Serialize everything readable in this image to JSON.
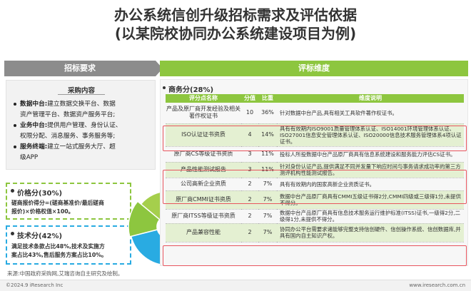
{
  "title": {
    "line1": "办公系统信创升级招标需求及评估依据",
    "line2": "(以某院校协同办公系统建设项目为例)"
  },
  "left": {
    "header": "招标要求",
    "procurement": {
      "title": "采购内容",
      "items": [
        {
          "label": "数据中台:",
          "text": "建立数据交换平台、数据",
          "cont": "资产管理平台、数据资产服务平台;"
        },
        {
          "label": "业务中台:",
          "text": "提供用户管理、身份认证、",
          "cont": "权限分配、消息服务、事务服务等;"
        },
        {
          "label": "服务终端:",
          "text": "建立一站式服务大厅、超",
          "cont": "级APP"
        }
      ]
    },
    "price": {
      "title": "价格分(30%)",
      "desc_line1": "磋商报价得分=(磋商基准价/最后磋商",
      "desc_line2": "报价)×价格权值×100。"
    },
    "tech": {
      "title": "技术分(42%)",
      "desc_line1": "满足技术条款占比48%,技术及实施方",
      "desc_line2": "案占比43%,售后服务方案占比10%。"
    }
  },
  "right": {
    "header": "评标维度",
    "business_title": "商务分(28%)",
    "columns": [
      "评分点名称",
      "分值",
      "比重",
      "维度说明"
    ],
    "rows": [
      {
        "name": "产品及原厂商开发经验及相关著作权证书",
        "score": "10",
        "pct": "36%",
        "desc": "针对数据中台产品,具有相关工具软件著作权证书。"
      },
      {
        "name": "ISO认证证书资质",
        "score": "4",
        "pct": "14%",
        "desc": "具有有效期内ISO9001质量管理体系认证、ISO14001环境管理体系认证、ISO27001信息安全管理体系认证、ISO20000信息技术服务管理体系4项认证证书。"
      },
      {
        "name": "原厂商CS等级证书资质",
        "score": "3",
        "pct": "11%",
        "desc": "投标人所投数据中台产品原厂商具有信息系统建设和服务能力评估CS证书。"
      },
      {
        "name": "产品性能测试报告",
        "score": "3",
        "pct": "11%",
        "desc": "针对身份认证产品,提供满足不同并发量下响应时间与事务请求成功率的第三方测评机构性能测试报告。"
      },
      {
        "name": "公司高新企业资质",
        "score": "2",
        "pct": "7%",
        "desc": "具有有效期内的国家高新企业资质证书。"
      },
      {
        "name": "原厂商CMMI证书资质",
        "score": "2",
        "pct": "7%",
        "desc": "数据中台产品原厂商具有CMMI五级证书得2分,CMMI四级或三级得1分,未提供不得分。"
      },
      {
        "name": "原厂商ITSS等级证书资质",
        "score": "2",
        "pct": "7%",
        "desc": "数据中台产品原厂商具有信息技术服务运行维护标准(ITSS)证书,一级得2分,二级得1分,未提供不得分。"
      },
      {
        "name": "产品兼容性能",
        "score": "2",
        "pct": "7%",
        "desc": "协同办公平台需要求诸能够完整支持信创硬件、信创操作系统、信创数据库,并具有国内自主知识产权。"
      }
    ]
  },
  "pie_data": {
    "slices": [
      {
        "name": "价格分",
        "value": 30,
        "color": "#8dc63f"
      },
      {
        "name": "技术分",
        "value": 42,
        "color": "#29abe2"
      },
      {
        "name": "商务分",
        "value": 28,
        "color": "#a5cf4c"
      }
    ]
  },
  "source": "来源:中国政府采购网,艾瑞咨询自主研究及绘制。",
  "footer": {
    "left": "©2024.9 iResearch Inc",
    "right": "www.iresearch.com.cn"
  }
}
